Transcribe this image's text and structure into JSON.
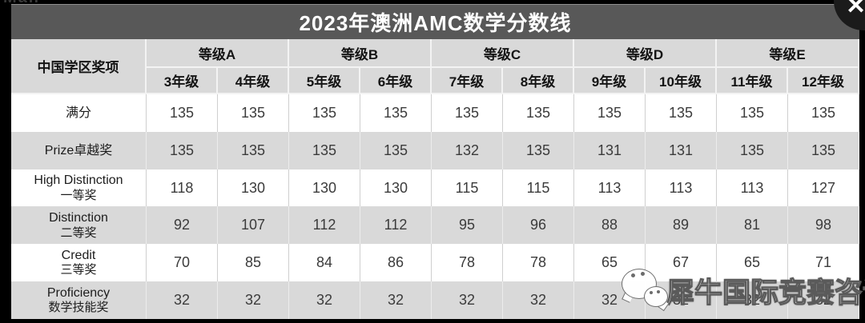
{
  "ui": {
    "top_edge_fragment": "Man",
    "close_button_glyph": "✕",
    "watermark_text": "犀牛国际竞赛咨询",
    "watermark_icon": "wechat-icon"
  },
  "colors": {
    "page_bg": "#000000",
    "title_bar_bg": "#585858",
    "title_text": "#ffffff",
    "header_bg": "#d9d9d9",
    "row_white": "#ffffff",
    "row_gray": "#d9d9d9",
    "value_text": "#3b3b3b"
  },
  "chart_data": {
    "type": "table",
    "title": "2023年澳洲AMC数学分数线",
    "corner_header": "中国学区奖项",
    "column_groups": [
      {
        "label": "等级A",
        "grades": [
          "3年级",
          "4年级"
        ]
      },
      {
        "label": "等级B",
        "grades": [
          "5年级",
          "6年级"
        ]
      },
      {
        "label": "等级C",
        "grades": [
          "7年级",
          "8年级"
        ]
      },
      {
        "label": "等级D",
        "grades": [
          "9年级",
          "10年级"
        ]
      },
      {
        "label": "等级E",
        "grades": [
          "11年级",
          "12年级"
        ]
      }
    ],
    "columns": [
      "3年级",
      "4年级",
      "5年级",
      "6年级",
      "7年级",
      "8年级",
      "9年级",
      "10年级",
      "11年级",
      "12年级"
    ],
    "rows": [
      {
        "label_en": "",
        "label_zh": "满分",
        "values": [
          135,
          135,
          135,
          135,
          135,
          135,
          135,
          135,
          135,
          135
        ]
      },
      {
        "label_en": "",
        "label_zh": "Prize卓越奖",
        "values": [
          135,
          135,
          135,
          135,
          132,
          135,
          131,
          131,
          135,
          135
        ]
      },
      {
        "label_en": "High Distinction",
        "label_zh": "一等奖",
        "values": [
          118,
          130,
          130,
          130,
          115,
          115,
          113,
          113,
          113,
          127
        ]
      },
      {
        "label_en": "Distinction",
        "label_zh": "二等奖",
        "values": [
          92,
          107,
          112,
          112,
          95,
          96,
          88,
          89,
          81,
          98
        ]
      },
      {
        "label_en": "Credit",
        "label_zh": "三等奖",
        "values": [
          70,
          85,
          84,
          86,
          78,
          78,
          65,
          67,
          65,
          71
        ]
      },
      {
        "label_en": "Proficiency",
        "label_zh": "数学技能奖",
        "values": [
          32,
          32,
          32,
          32,
          32,
          32,
          32,
          32,
          32,
          32
        ]
      }
    ]
  }
}
